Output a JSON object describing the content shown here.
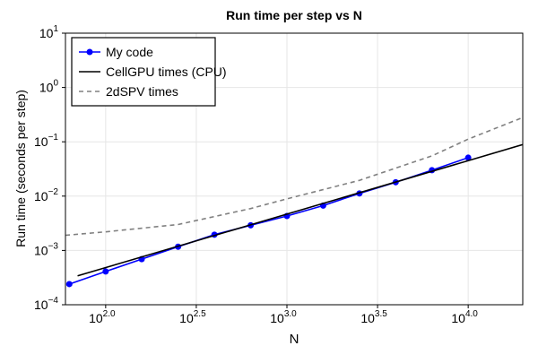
{
  "chart_data": {
    "type": "line",
    "title": "Run time per step vs N",
    "xlabel": "N",
    "ylabel": "Run time (seconds per step)",
    "xscale": "log",
    "yscale": "log",
    "grid": true,
    "legend": "upper left",
    "xlim": [
      60,
      20000
    ],
    "ylim": [
      0.0001,
      10
    ],
    "xticks": [
      {
        "value": 100,
        "label": "10",
        "exponent": "2.0"
      },
      {
        "value": 316.2,
        "label": "10",
        "exponent": "2.5"
      },
      {
        "value": 1000,
        "label": "10",
        "exponent": "3.0"
      },
      {
        "value": 3162.3,
        "label": "10",
        "exponent": "3.5"
      },
      {
        "value": 10000,
        "label": "10",
        "exponent": "4.0"
      }
    ],
    "yticks": [
      {
        "value": 0.0001,
        "label": "10",
        "exponent": "−4"
      },
      {
        "value": 0.001,
        "label": "10",
        "exponent": "−3"
      },
      {
        "value": 0.01,
        "label": "10",
        "exponent": "−2"
      },
      {
        "value": 0.1,
        "label": "10",
        "exponent": "−1"
      },
      {
        "value": 1,
        "label": "10",
        "exponent": "0"
      },
      {
        "value": 10,
        "label": "10",
        "exponent": "1"
      }
    ],
    "series": [
      {
        "name": "My code",
        "color": "#0000ff",
        "style": "solid",
        "markers": true,
        "x": [
          63,
          100,
          158,
          251,
          398,
          631,
          1000,
          1585,
          2512,
          3981,
          6310,
          10000
        ],
        "values": [
          0.00024,
          0.00041,
          0.00069,
          0.00117,
          0.00195,
          0.0029,
          0.0043,
          0.0067,
          0.0112,
          0.018,
          0.03,
          0.051
        ]
      },
      {
        "name": "CellGPU times (CPU)",
        "color": "#000000",
        "style": "solid",
        "markers": false,
        "x": [
          70,
          20000
        ],
        "values": [
          0.00034,
          0.089
        ]
      },
      {
        "name": "2dSPV times",
        "color": "#808080",
        "style": "dashed",
        "markers": false,
        "x": [
          60,
          100,
          251,
          631,
          1000,
          2512,
          6310,
          10000,
          20000
        ],
        "values": [
          0.0019,
          0.0022,
          0.003,
          0.0059,
          0.0089,
          0.0195,
          0.055,
          0.112,
          0.28
        ]
      }
    ]
  }
}
